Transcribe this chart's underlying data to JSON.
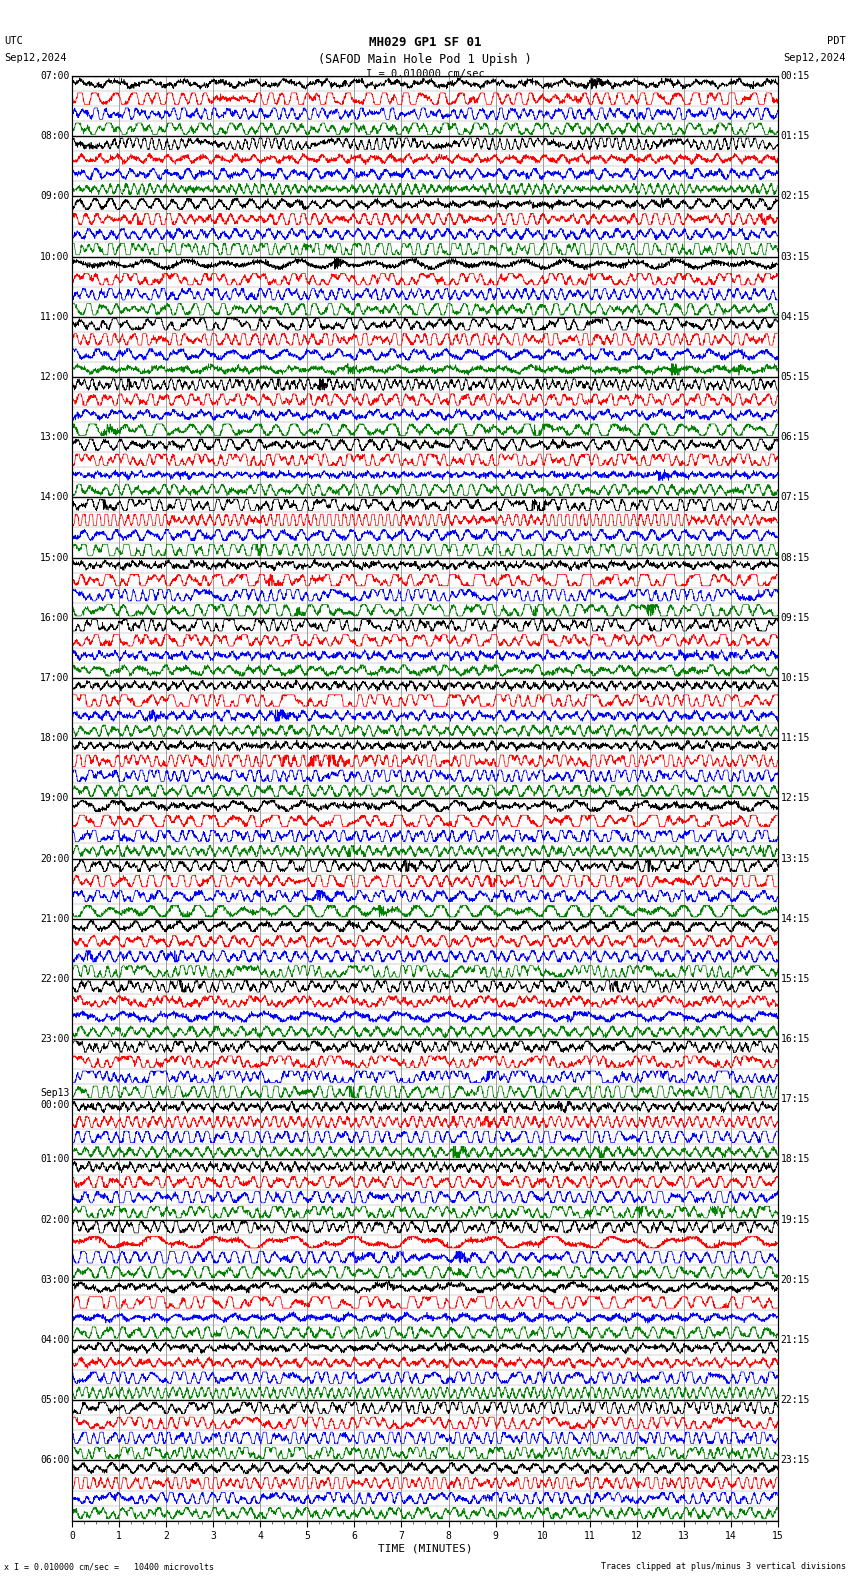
{
  "title_line1": "MH029 GP1 SF 01",
  "title_line2": "(SAFOD Main Hole Pod 1 Upish )",
  "scale_text": "I = 0.010000 cm/sec",
  "footer_left": "x I = 0.010000 cm/sec =   10400 microvolts",
  "footer_right": "Traces clipped at plus/minus 3 vertical divisions",
  "utc_label": "UTC",
  "utc_date": "Sep12,2024",
  "pdt_label": "PDT",
  "pdt_date": "Sep12,2024",
  "xlabel": "TIME (MINUTES)",
  "left_times": [
    "07:00",
    "08:00",
    "09:00",
    "10:00",
    "11:00",
    "12:00",
    "13:00",
    "14:00",
    "15:00",
    "16:00",
    "17:00",
    "18:00",
    "19:00",
    "20:00",
    "21:00",
    "22:00",
    "23:00",
    "Sep13\n00:00",
    "01:00",
    "02:00",
    "03:00",
    "04:00",
    "05:00",
    "06:00"
  ],
  "right_times": [
    "00:15",
    "01:15",
    "02:15",
    "03:15",
    "04:15",
    "05:15",
    "06:15",
    "07:15",
    "08:15",
    "09:15",
    "10:15",
    "11:15",
    "12:15",
    "13:15",
    "14:15",
    "15:15",
    "16:15",
    "17:15",
    "18:15",
    "19:15",
    "20:15",
    "21:15",
    "22:15",
    "23:15"
  ],
  "n_rows": 24,
  "n_traces_per_row": 4,
  "colors": [
    "black",
    "red",
    "blue",
    "green"
  ],
  "bg_color": "white",
  "x_ticks": [
    0,
    1,
    2,
    3,
    4,
    5,
    6,
    7,
    8,
    9,
    10,
    11,
    12,
    13,
    14,
    15
  ],
  "fig_width": 8.5,
  "fig_height": 15.84
}
